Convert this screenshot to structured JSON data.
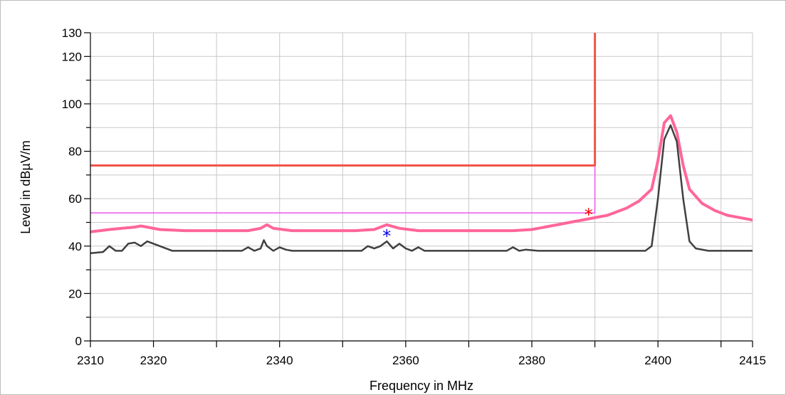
{
  "chart_data": {
    "type": "line",
    "xlabel": "Frequency in MHz",
    "ylabel": "Level in dBµV/m",
    "xlim": [
      2310,
      2415
    ],
    "ylim": [
      0,
      130
    ],
    "x_tick_labels": [
      "2310",
      "2320",
      "2340",
      "2360",
      "2380",
      "2400",
      "2415"
    ],
    "y_tick_labels": [
      "0",
      "20",
      "40",
      "60",
      "80",
      "100",
      "120",
      "130"
    ],
    "grid": true,
    "colors": {
      "peak_trace": "#ff6699",
      "average_trace": "#404040",
      "limit_peak": "#f0554a",
      "limit_average": "#ee55ee",
      "marker_peak": "#ff0000",
      "marker_average": "#0000ee"
    },
    "series": [
      {
        "role": "peak",
        "x": [
          2310,
          2313,
          2315,
          2317,
          2318,
          2319,
          2321,
          2325,
          2330,
          2335,
          2337,
          2338,
          2339,
          2342,
          2347,
          2352,
          2355,
          2357,
          2359,
          2362,
          2367,
          2372,
          2377,
          2380,
          2383,
          2386,
          2389,
          2392,
          2395,
          2397,
          2399,
          2400,
          2401,
          2402,
          2403,
          2404,
          2405,
          2407,
          2409,
          2411,
          2413,
          2415
        ],
        "y": [
          46,
          47,
          47.5,
          48,
          48.5,
          48,
          47,
          46.5,
          46.5,
          46.5,
          47.5,
          49,
          47.5,
          46.5,
          46.5,
          46.5,
          47,
          49,
          47.5,
          46.5,
          46.5,
          46.5,
          46.5,
          47,
          48.5,
          50,
          51.5,
          53,
          56,
          59,
          64,
          76,
          92,
          95,
          88,
          74,
          64,
          58,
          55,
          53,
          52,
          51
        ]
      },
      {
        "role": "average",
        "x": [
          2310,
          2312,
          2313,
          2314,
          2315,
          2316,
          2317,
          2318,
          2319,
          2320,
          2323,
          2330,
          2334,
          2335,
          2336,
          2337,
          2337.5,
          2338,
          2339,
          2340,
          2341,
          2342,
          2346,
          2350,
          2353,
          2354,
          2355,
          2356,
          2357,
          2358,
          2359,
          2360,
          2361,
          2362,
          2363,
          2370,
          2376,
          2377,
          2378,
          2379,
          2381,
          2385,
          2390,
          2395,
          2398,
          2399,
          2400,
          2401,
          2402,
          2403,
          2404,
          2405,
          2406,
          2408,
          2411,
          2415
        ],
        "y": [
          37,
          37.5,
          40,
          38,
          38,
          41,
          41.5,
          40,
          42,
          41,
          38,
          38,
          38,
          39.5,
          38,
          39,
          42.5,
          40,
          38,
          39.5,
          38.5,
          38,
          38,
          38,
          38,
          40,
          39,
          40,
          42,
          39,
          41,
          39,
          38,
          39.5,
          38,
          38,
          38,
          39.5,
          38,
          38.5,
          38,
          38,
          38,
          38,
          38,
          40,
          60,
          85,
          91,
          84,
          60,
          42,
          39,
          38,
          38,
          38
        ]
      },
      {
        "role": "limit-peak",
        "x": [
          2310,
          2390,
          2390
        ],
        "y": [
          74,
          74,
          130
        ]
      },
      {
        "role": "limit-average",
        "x": [
          2310,
          2390,
          2390
        ],
        "y": [
          54,
          54,
          130
        ]
      }
    ],
    "markers": [
      {
        "role": "peak-marker",
        "x": 2389,
        "y": 53.5,
        "symbol": "*"
      },
      {
        "role": "average-marker",
        "x": 2357,
        "y": 44.5,
        "symbol": "*"
      }
    ]
  }
}
